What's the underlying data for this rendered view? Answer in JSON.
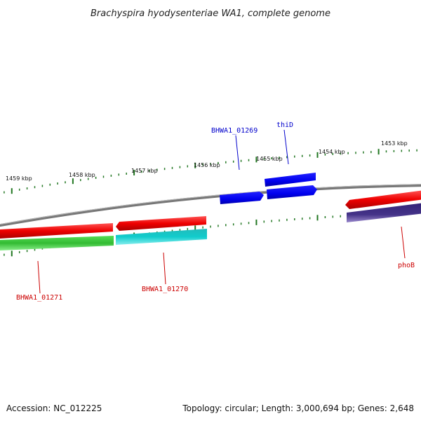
{
  "header": {
    "title": "Brachyspira hyodysenteriae WA1, complete genome"
  },
  "footer": {
    "accession": "Accession: NC_012225",
    "summary": "Topology: circular; Length: 3,000,694 bp; Genes: 2,648"
  },
  "ticks": [
    {
      "label": "1459 kbp"
    },
    {
      "label": "1458 kbp"
    },
    {
      "label": "1457 kbp"
    },
    {
      "label": "1456 kbp"
    },
    {
      "label": "1455 kbp"
    },
    {
      "label": "1454 kbp"
    },
    {
      "label": "1453 kbp"
    }
  ],
  "genes": [
    {
      "label": "BHWA1_01269",
      "color": "#0000cc"
    },
    {
      "label": "thiD",
      "color": "#0000cc"
    },
    {
      "label": "BHWA1_01271",
      "color": "#cc0000"
    },
    {
      "label": "BHWA1_01270",
      "color": "#cc0000"
    },
    {
      "label": "phoB",
      "color": "#cc0000"
    }
  ],
  "colors": {
    "cds_red": "#ee0000",
    "gene_green": "#33cc33",
    "gene_cyan": "#11cccc",
    "gene_blue": "#0000ee",
    "gene_purple": "#443388",
    "backbone": "#777777",
    "tick_green": "#227722"
  }
}
